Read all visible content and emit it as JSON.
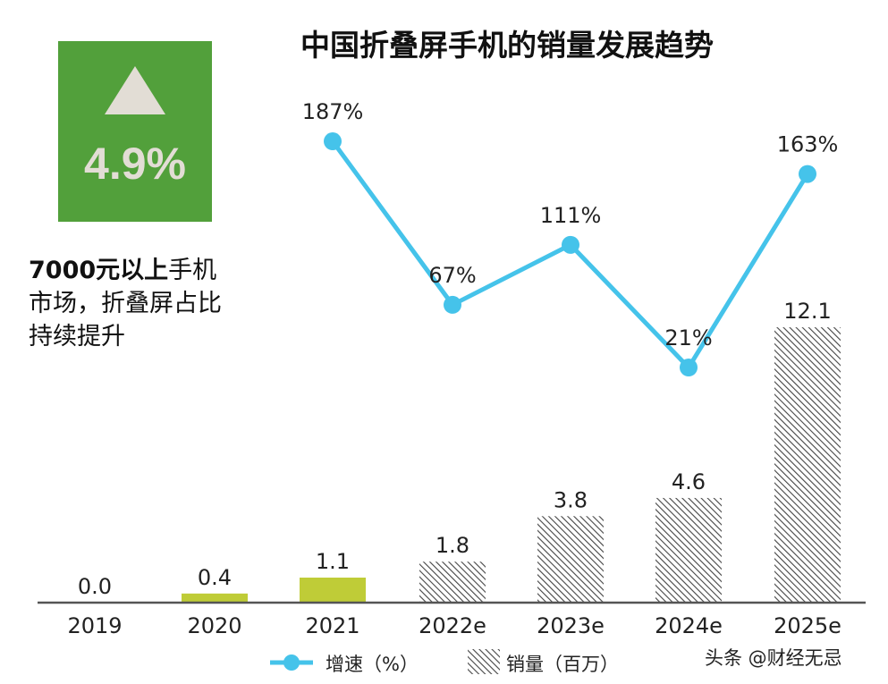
{
  "badge": {
    "value": "4.9%",
    "icon": "up-triangle-icon",
    "color": "#52a03b"
  },
  "note": {
    "bold": "7000元以上",
    "rest_line1": "手机",
    "line2": "市场，折叠屏占比",
    "line3": "持续提升"
  },
  "watermark": "头条 @财经无忌",
  "chart_data": {
    "type": "bar+line",
    "title": "中国折叠屏手机的销量发展趋势",
    "categories": [
      "2019",
      "2020",
      "2021",
      "2022e",
      "2023e",
      "2024e",
      "2025e"
    ],
    "series": [
      {
        "name": "销量（百万）",
        "type": "bar",
        "values": [
          0.0,
          0.4,
          1.1,
          1.8,
          3.8,
          4.6,
          12.1
        ],
        "labels": [
          "0.0",
          "0.4",
          "1.1",
          "1.8",
          "3.8",
          "4.6",
          "12.1"
        ],
        "styles": [
          "solid",
          "solid",
          "solid",
          "hatched",
          "hatched",
          "hatched",
          "hatched"
        ],
        "color": "#bfcc37"
      },
      {
        "name": "增速（%）",
        "type": "line",
        "values": [
          null,
          null,
          187,
          67,
          111,
          21,
          163
        ],
        "labels": [
          "",
          "",
          "187%",
          "67%",
          "111%",
          "21%",
          "163%"
        ],
        "color": "#45c3ea"
      }
    ],
    "legend": {
      "position": "bottom",
      "items": [
        "增速（%）",
        "销量（百万）"
      ]
    },
    "grid": false
  }
}
